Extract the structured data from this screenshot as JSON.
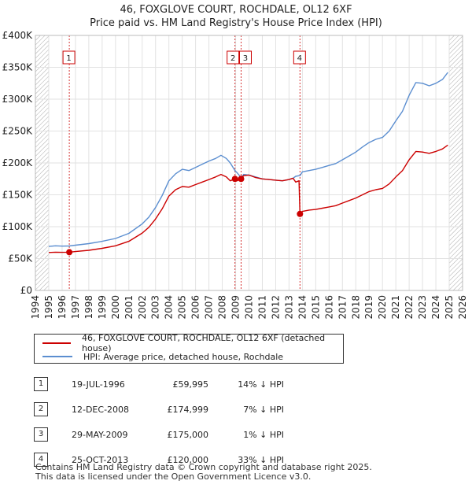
{
  "title": {
    "line1": "46, FOXGLOVE COURT, ROCHDALE, OL12 6XF",
    "line2": "Price paid vs. HM Land Registry's House Price Index (HPI)"
  },
  "legend": {
    "property": "46, FOXGLOVE COURT, ROCHDALE, OL12 6XF (detached house)",
    "hpi": "HPI: Average price, detached house, Rochdale"
  },
  "colors": {
    "property": "#cc0000",
    "hpi": "#5b8ed0",
    "marker": "#cc0000",
    "hatch": "#999999"
  },
  "transactions": [
    {
      "num": "1",
      "date": "19-JUL-1996",
      "price": "£59,995",
      "hpi": "14% ↓ HPI"
    },
    {
      "num": "2",
      "date": "12-DEC-2008",
      "price": "£174,999",
      "hpi": "7% ↓ HPI"
    },
    {
      "num": "3",
      "date": "29-MAY-2009",
      "price": "£175,000",
      "hpi": "1% ↓ HPI"
    },
    {
      "num": "4",
      "date": "25-OCT-2013",
      "price": "£120,000",
      "hpi": "33% ↓ HPI"
    }
  ],
  "footer": {
    "line1": "Contains HM Land Registry data © Crown copyright and database right 2025.",
    "line2": "This data is licensed under the Open Government Licence v3.0."
  },
  "chart_data": {
    "type": "line",
    "title": "46, FOXGLOVE COURT, ROCHDALE, OL12 6XF — Price paid vs. HM Land Registry's House Price Index (HPI)",
    "xlabel": "",
    "ylabel": "",
    "xlim": [
      1994,
      2026
    ],
    "ylim": [
      0,
      400000
    ],
    "x_ticks": [
      "1994",
      "1995",
      "1996",
      "1997",
      "1998",
      "1999",
      "2000",
      "2001",
      "2002",
      "2003",
      "2004",
      "2005",
      "2006",
      "2007",
      "2008",
      "2009",
      "2010",
      "2011",
      "2012",
      "2013",
      "2014",
      "2015",
      "2016",
      "2017",
      "2018",
      "2019",
      "2020",
      "2021",
      "2022",
      "2023",
      "2024",
      "2025",
      "2026"
    ],
    "y_ticks": [
      {
        "value": 0,
        "label": "£0"
      },
      {
        "value": 50000,
        "label": "£50K"
      },
      {
        "value": 100000,
        "label": "£100K"
      },
      {
        "value": 150000,
        "label": "£150K"
      },
      {
        "value": 200000,
        "label": "£200K"
      },
      {
        "value": 250000,
        "label": "£250K"
      },
      {
        "value": 300000,
        "label": "£300K"
      },
      {
        "value": 350000,
        "label": "£350K"
      },
      {
        "value": 400000,
        "label": "£400K"
      }
    ],
    "grid": true,
    "hatched_ranges": [
      [
        1994.0,
        1995.0
      ],
      [
        2025.0,
        2026.0
      ]
    ],
    "series": [
      {
        "name": "46, FOXGLOVE COURT, ROCHDALE, OL12 6XF (detached house)",
        "x": [
          1995.0,
          1995.5,
          1996.0,
          1996.54,
          1997.0,
          1998.0,
          1999.0,
          2000.0,
          2001.0,
          2002.0,
          2002.5,
          2003.0,
          2003.5,
          2004.0,
          2004.5,
          2005.0,
          2005.5,
          2006.0,
          2006.5,
          2007.0,
          2007.5,
          2007.9,
          2008.3,
          2008.6,
          2008.95,
          2009.1,
          2009.41,
          2009.6,
          2010.0,
          2010.5,
          2011.0,
          2011.5,
          2012.0,
          2012.5,
          2013.0,
          2013.3,
          2013.5,
          2013.75,
          2013.82,
          2014.0,
          2014.5,
          2015.0,
          2015.5,
          2016.0,
          2016.5,
          2017.0,
          2017.5,
          2018.0,
          2018.5,
          2019.0,
          2019.5,
          2020.0,
          2020.5,
          2021.0,
          2021.5,
          2022.0,
          2022.5,
          2023.0,
          2023.5,
          2024.0,
          2024.5,
          2024.9
        ],
        "y": [
          59500,
          60000,
          59800,
          59995,
          61000,
          63000,
          66000,
          70000,
          77000,
          90000,
          99000,
          112000,
          128000,
          148000,
          158000,
          163000,
          162000,
          166000,
          170000,
          174000,
          178000,
          182000,
          178000,
          172000,
          174999,
          172000,
          175000,
          180000,
          181000,
          177000,
          175000,
          174000,
          173000,
          172000,
          174000,
          176000,
          170000,
          172000,
          120000,
          124000,
          126000,
          127000,
          129000,
          131000,
          133000,
          137000,
          141000,
          145000,
          150000,
          155000,
          158000,
          160000,
          167000,
          178000,
          188000,
          205000,
          218000,
          217000,
          215000,
          218000,
          222000,
          228000
        ]
      },
      {
        "name": "HPI: Average price, detached house, Rochdale",
        "x": [
          1995.0,
          1995.5,
          1996.0,
          1996.54,
          1997.0,
          1998.0,
          1999.0,
          2000.0,
          2001.0,
          2002.0,
          2002.5,
          2003.0,
          2003.5,
          2004.0,
          2004.5,
          2005.0,
          2005.5,
          2006.0,
          2006.5,
          2007.0,
          2007.5,
          2007.9,
          2008.3,
          2008.6,
          2008.95,
          2009.1,
          2009.41,
          2009.6,
          2010.0,
          2010.5,
          2011.0,
          2011.5,
          2012.0,
          2012.5,
          2013.0,
          2013.3,
          2013.5,
          2013.75,
          2013.82,
          2014.0,
          2014.5,
          2015.0,
          2015.5,
          2016.0,
          2016.5,
          2017.0,
          2017.5,
          2018.0,
          2018.5,
          2019.0,
          2019.5,
          2020.0,
          2020.5,
          2021.0,
          2021.5,
          2022.0,
          2022.5,
          2023.0,
          2023.5,
          2024.0,
          2024.5,
          2024.9
        ],
        "y": [
          69000,
          70000,
          69500,
          69800,
          71000,
          73500,
          77000,
          81500,
          89500,
          104500,
          115000,
          130000,
          149000,
          172000,
          183000,
          190000,
          188000,
          193000,
          198000,
          203000,
          207000,
          212000,
          207000,
          200000,
          188000,
          185000,
          177000,
          182000,
          181000,
          178000,
          175000,
          174000,
          173000,
          172000,
          174000,
          176000,
          179000,
          180000,
          180000,
          186000,
          188000,
          190000,
          193000,
          196000,
          199000,
          205000,
          211000,
          217000,
          225000,
          232000,
          237000,
          240000,
          250000,
          266000,
          281000,
          306000,
          326000,
          325000,
          321000,
          325000,
          331000,
          342000
        ]
      }
    ],
    "annotations": [
      {
        "label": "1",
        "x": 1996.54,
        "y": 59995
      },
      {
        "label": "2",
        "x": 2008.95,
        "y": 174999
      },
      {
        "label": "3",
        "x": 2009.41,
        "y": 175000
      },
      {
        "label": "4",
        "x": 2013.82,
        "y": 120000
      }
    ]
  }
}
